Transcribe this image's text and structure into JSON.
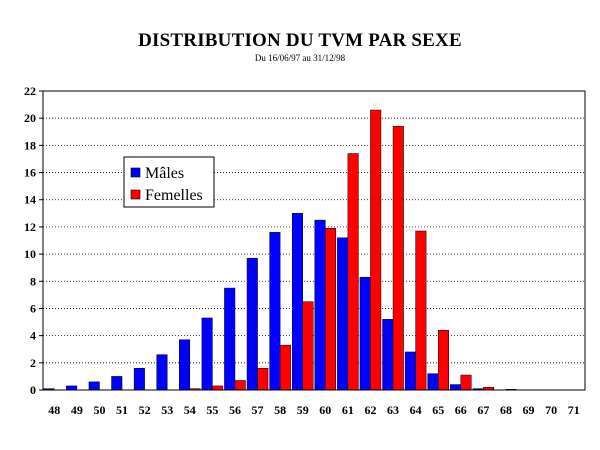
{
  "chart_data": {
    "type": "bar",
    "title": "DISTRIBUTION DU TVM PAR SEXE",
    "subtitle": "Du 16/06/97 au 31/12/98",
    "categories": [
      "48",
      "49",
      "50",
      "51",
      "52",
      "53",
      "54",
      "55",
      "56",
      "57",
      "58",
      "59",
      "60",
      "61",
      "62",
      "63",
      "64",
      "65",
      "66",
      "67",
      "68",
      "69",
      "70",
      "71"
    ],
    "series": [
      {
        "name": "Mâles",
        "color": "#0000ff",
        "values": [
          0.1,
          0.3,
          0.6,
          1.0,
          1.6,
          2.6,
          3.7,
          5.3,
          7.5,
          9.7,
          11.6,
          13.0,
          12.5,
          11.2,
          8.3,
          5.2,
          2.8,
          1.2,
          0.4,
          0.1,
          0,
          0,
          0,
          0
        ]
      },
      {
        "name": "Femelles",
        "color": "#ff0000",
        "values": [
          0,
          0,
          0,
          0,
          0,
          0,
          0.1,
          0.3,
          0.7,
          1.6,
          3.3,
          6.5,
          11.9,
          17.4,
          20.6,
          19.4,
          11.7,
          4.4,
          1.1,
          0.2,
          0.05,
          0,
          0,
          0
        ]
      }
    ],
    "ylim": [
      0,
      22
    ],
    "yticks": [
      0,
      2,
      4,
      6,
      8,
      10,
      12,
      14,
      16,
      18,
      20,
      22
    ],
    "grid": "horizontal-dotted",
    "legend": "left"
  }
}
